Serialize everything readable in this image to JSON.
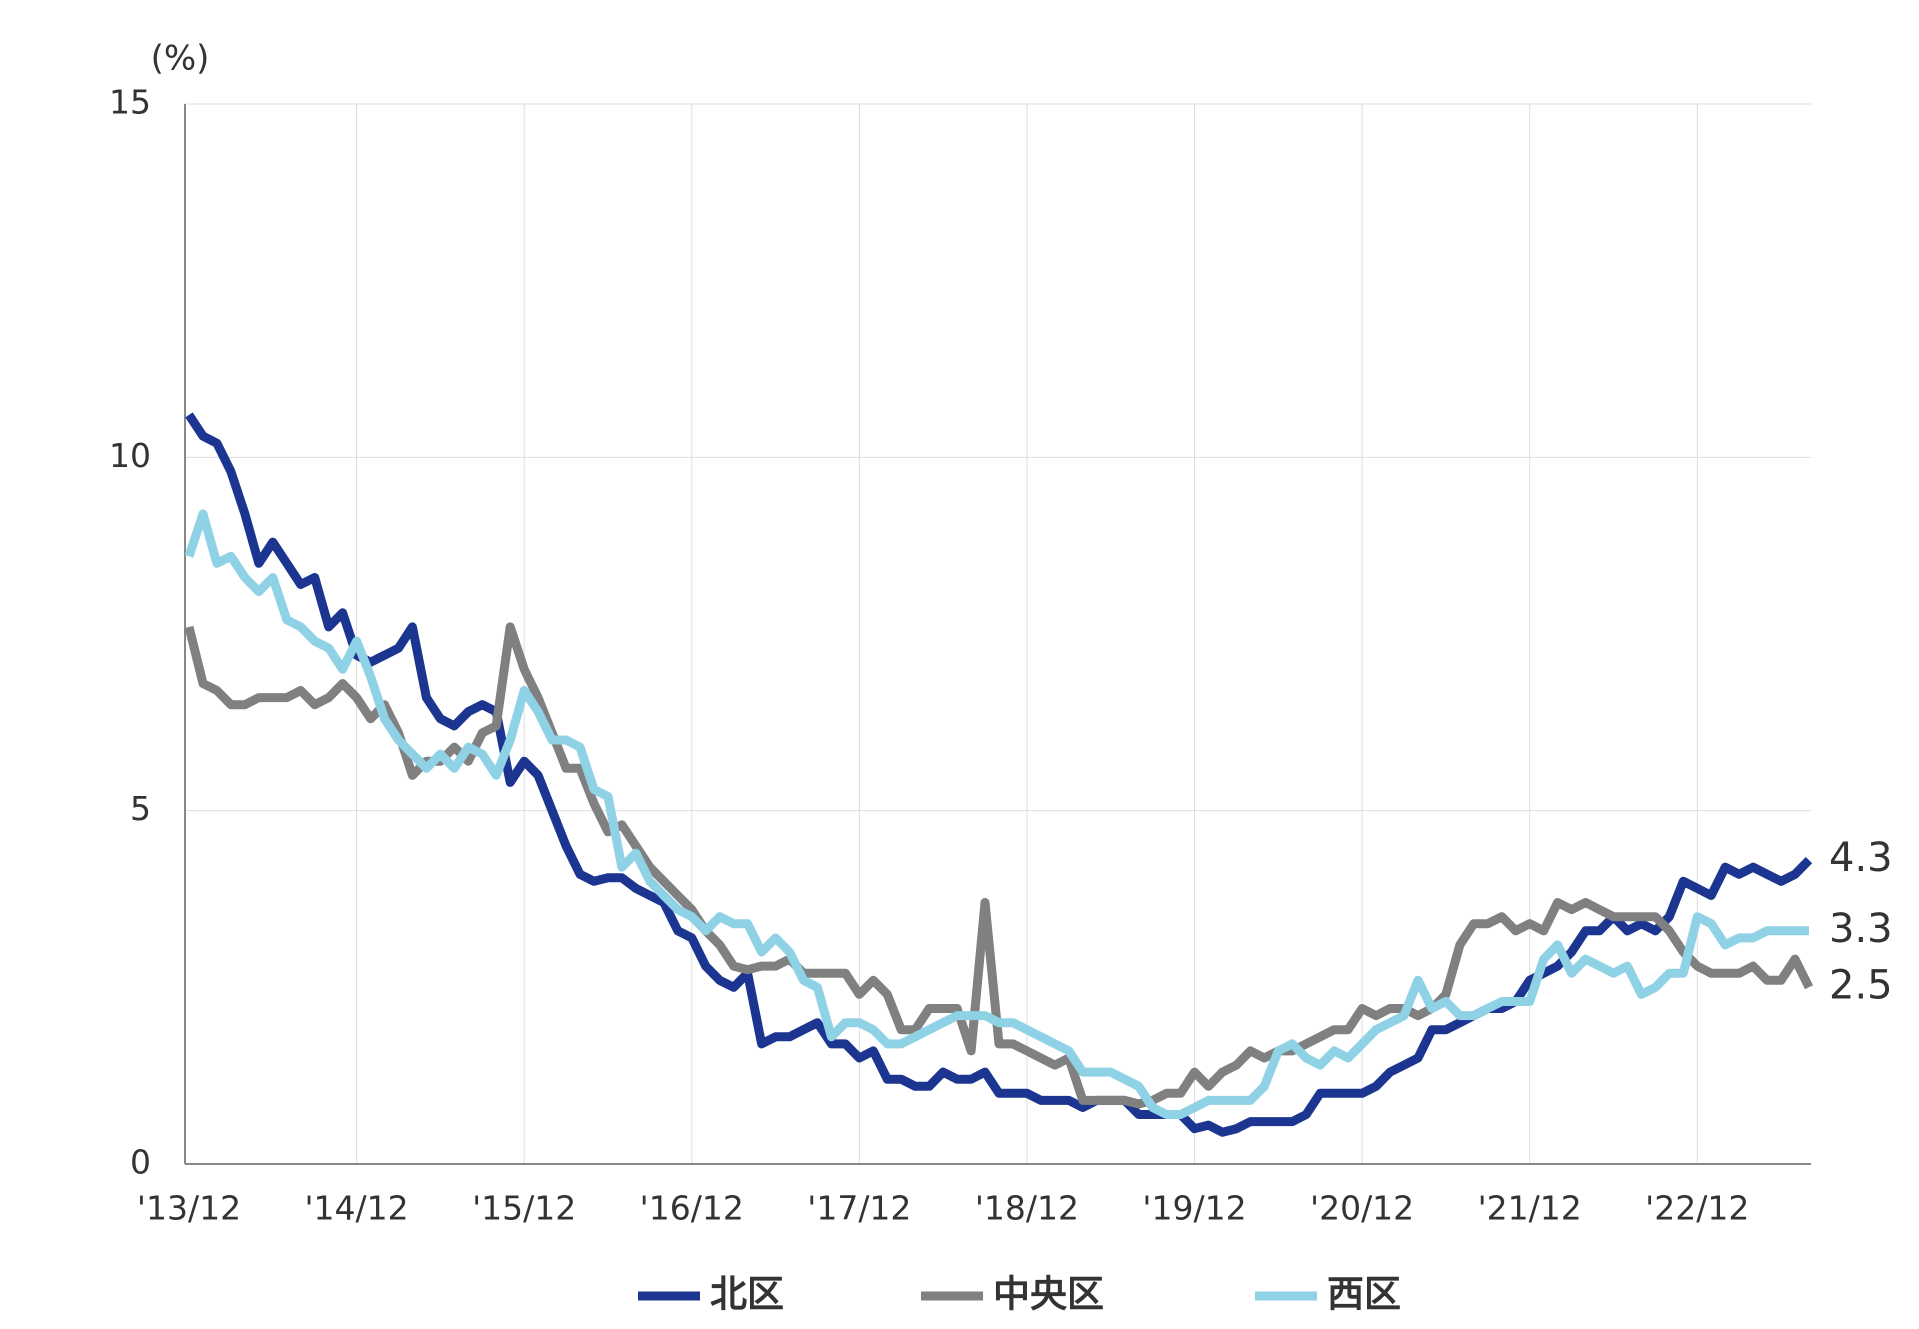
{
  "chart_data": {
    "type": "line",
    "y_label": "(%)",
    "categories": [
      "'13/12",
      null,
      null,
      null,
      null,
      null,
      null,
      null,
      null,
      null,
      null,
      null,
      "'14/12",
      null,
      null,
      null,
      null,
      null,
      null,
      null,
      null,
      null,
      null,
      null,
      "'15/12",
      null,
      null,
      null,
      null,
      null,
      null,
      null,
      null,
      null,
      null,
      null,
      "'16/12",
      null,
      null,
      null,
      null,
      null,
      null,
      null,
      null,
      null,
      null,
      null,
      "'17/12",
      null,
      null,
      null,
      null,
      null,
      null,
      null,
      null,
      null,
      null,
      null,
      "'18/12",
      null,
      null,
      null,
      null,
      null,
      null,
      null,
      null,
      null,
      null,
      null,
      "'19/12",
      null,
      null,
      null,
      null,
      null,
      null,
      null,
      null,
      null,
      null,
      null,
      "'20/12",
      null,
      null,
      null,
      null,
      null,
      null,
      null,
      null,
      null,
      null,
      null,
      "'21/12",
      null,
      null,
      null,
      null,
      null,
      null,
      null,
      null,
      null,
      null,
      null,
      "'22/12",
      null,
      null,
      null,
      null,
      null,
      null,
      null,
      null
    ],
    "series": [
      {
        "name": "北区",
        "color": "#1c3590",
        "values": [
          10.6,
          10.3,
          10.2,
          9.8,
          9.2,
          8.5,
          8.8,
          8.5,
          8.2,
          8.3,
          7.6,
          7.8,
          7.2,
          7.1,
          7.2,
          7.3,
          7.6,
          6.6,
          6.3,
          6.2,
          6.4,
          6.5,
          6.4,
          5.4,
          5.7,
          5.5,
          5.0,
          4.5,
          4.1,
          4.0,
          4.05,
          4.05,
          3.9,
          3.8,
          3.7,
          3.3,
          3.2,
          2.8,
          2.6,
          2.5,
          2.7,
          1.7,
          1.8,
          1.8,
          1.9,
          2.0,
          1.7,
          1.7,
          1.5,
          1.6,
          1.2,
          1.2,
          1.1,
          1.1,
          1.3,
          1.2,
          1.2,
          1.3,
          1.0,
          1.0,
          1.0,
          0.9,
          0.9,
          0.9,
          0.8,
          0.9,
          0.9,
          0.9,
          0.7,
          0.7,
          0.7,
          0.7,
          0.5,
          0.55,
          0.45,
          0.5,
          0.6,
          0.6,
          0.6,
          0.6,
          0.7,
          1.0,
          1.0,
          1.0,
          1.0,
          1.1,
          1.3,
          1.4,
          1.5,
          1.9,
          1.9,
          2.0,
          2.1,
          2.2,
          2.2,
          2.3,
          2.6,
          2.7,
          2.8,
          3.0,
          3.3,
          3.3,
          3.5,
          3.3,
          3.4,
          3.3,
          3.5,
          4.0,
          3.9,
          3.8,
          4.2,
          4.1,
          4.2,
          4.1,
          4.0,
          4.1,
          4.3
        ]
      },
      {
        "name": "中央区",
        "color": "#808080",
        "values": [
          7.6,
          6.8,
          6.7,
          6.5,
          6.5,
          6.6,
          6.6,
          6.6,
          6.7,
          6.5,
          6.6,
          6.8,
          6.6,
          6.3,
          6.5,
          6.1,
          5.5,
          5.7,
          5.7,
          5.9,
          5.7,
          6.1,
          6.2,
          7.6,
          7.0,
          6.6,
          6.1,
          5.6,
          5.6,
          5.1,
          4.7,
          4.8,
          4.5,
          4.2,
          4.0,
          3.8,
          3.6,
          3.3,
          3.1,
          2.8,
          2.75,
          2.8,
          2.8,
          2.9,
          2.7,
          2.7,
          2.7,
          2.7,
          2.4,
          2.6,
          2.4,
          1.9,
          1.9,
          2.2,
          2.2,
          2.2,
          1.6,
          3.7,
          1.7,
          1.7,
          1.6,
          1.5,
          1.4,
          1.5,
          0.9,
          0.9,
          0.9,
          0.9,
          0.85,
          0.9,
          1.0,
          1.0,
          1.3,
          1.1,
          1.3,
          1.4,
          1.6,
          1.5,
          1.6,
          1.6,
          1.7,
          1.8,
          1.9,
          1.9,
          2.2,
          2.1,
          2.2,
          2.2,
          2.1,
          2.2,
          2.4,
          3.1,
          3.4,
          3.4,
          3.5,
          3.3,
          3.4,
          3.3,
          3.7,
          3.6,
          3.7,
          3.6,
          3.5,
          3.5,
          3.5,
          3.5,
          3.3,
          3.0,
          2.8,
          2.7,
          2.7,
          2.7,
          2.8,
          2.6,
          2.6,
          2.9,
          2.5
        ]
      },
      {
        "name": "西区",
        "color": "#8fd2e6",
        "values": [
          8.6,
          9.2,
          8.5,
          8.6,
          8.3,
          8.1,
          8.3,
          7.7,
          7.6,
          7.4,
          7.3,
          7.0,
          7.4,
          6.9,
          6.3,
          6.0,
          5.8,
          5.6,
          5.8,
          5.6,
          5.9,
          5.8,
          5.5,
          6.0,
          6.7,
          6.4,
          6.0,
          6.0,
          5.9,
          5.3,
          5.2,
          4.2,
          4.4,
          4.0,
          3.8,
          3.6,
          3.5,
          3.3,
          3.5,
          3.4,
          3.4,
          3.0,
          3.2,
          3.0,
          2.6,
          2.5,
          1.8,
          2.0,
          2.0,
          1.9,
          1.7,
          1.7,
          1.8,
          1.9,
          2.0,
          2.1,
          2.1,
          2.1,
          2.0,
          2.0,
          1.9,
          1.8,
          1.7,
          1.6,
          1.3,
          1.3,
          1.3,
          1.2,
          1.1,
          0.8,
          0.7,
          0.7,
          0.8,
          0.9,
          0.9,
          0.9,
          0.9,
          1.1,
          1.6,
          1.7,
          1.5,
          1.4,
          1.6,
          1.5,
          1.7,
          1.9,
          2.0,
          2.1,
          2.6,
          2.2,
          2.3,
          2.1,
          2.1,
          2.2,
          2.3,
          2.3,
          2.3,
          2.9,
          3.1,
          2.7,
          2.9,
          2.8,
          2.7,
          2.8,
          2.4,
          2.5,
          2.7,
          2.7,
          3.5,
          3.4,
          3.1,
          3.2,
          3.2,
          3.3,
          3.3,
          3.3,
          3.3
        ]
      }
    ],
    "ylim": [
      0,
      15
    ],
    "yticks": [
      0,
      5,
      10,
      15
    ],
    "grid": true,
    "legend": "bottom"
  }
}
